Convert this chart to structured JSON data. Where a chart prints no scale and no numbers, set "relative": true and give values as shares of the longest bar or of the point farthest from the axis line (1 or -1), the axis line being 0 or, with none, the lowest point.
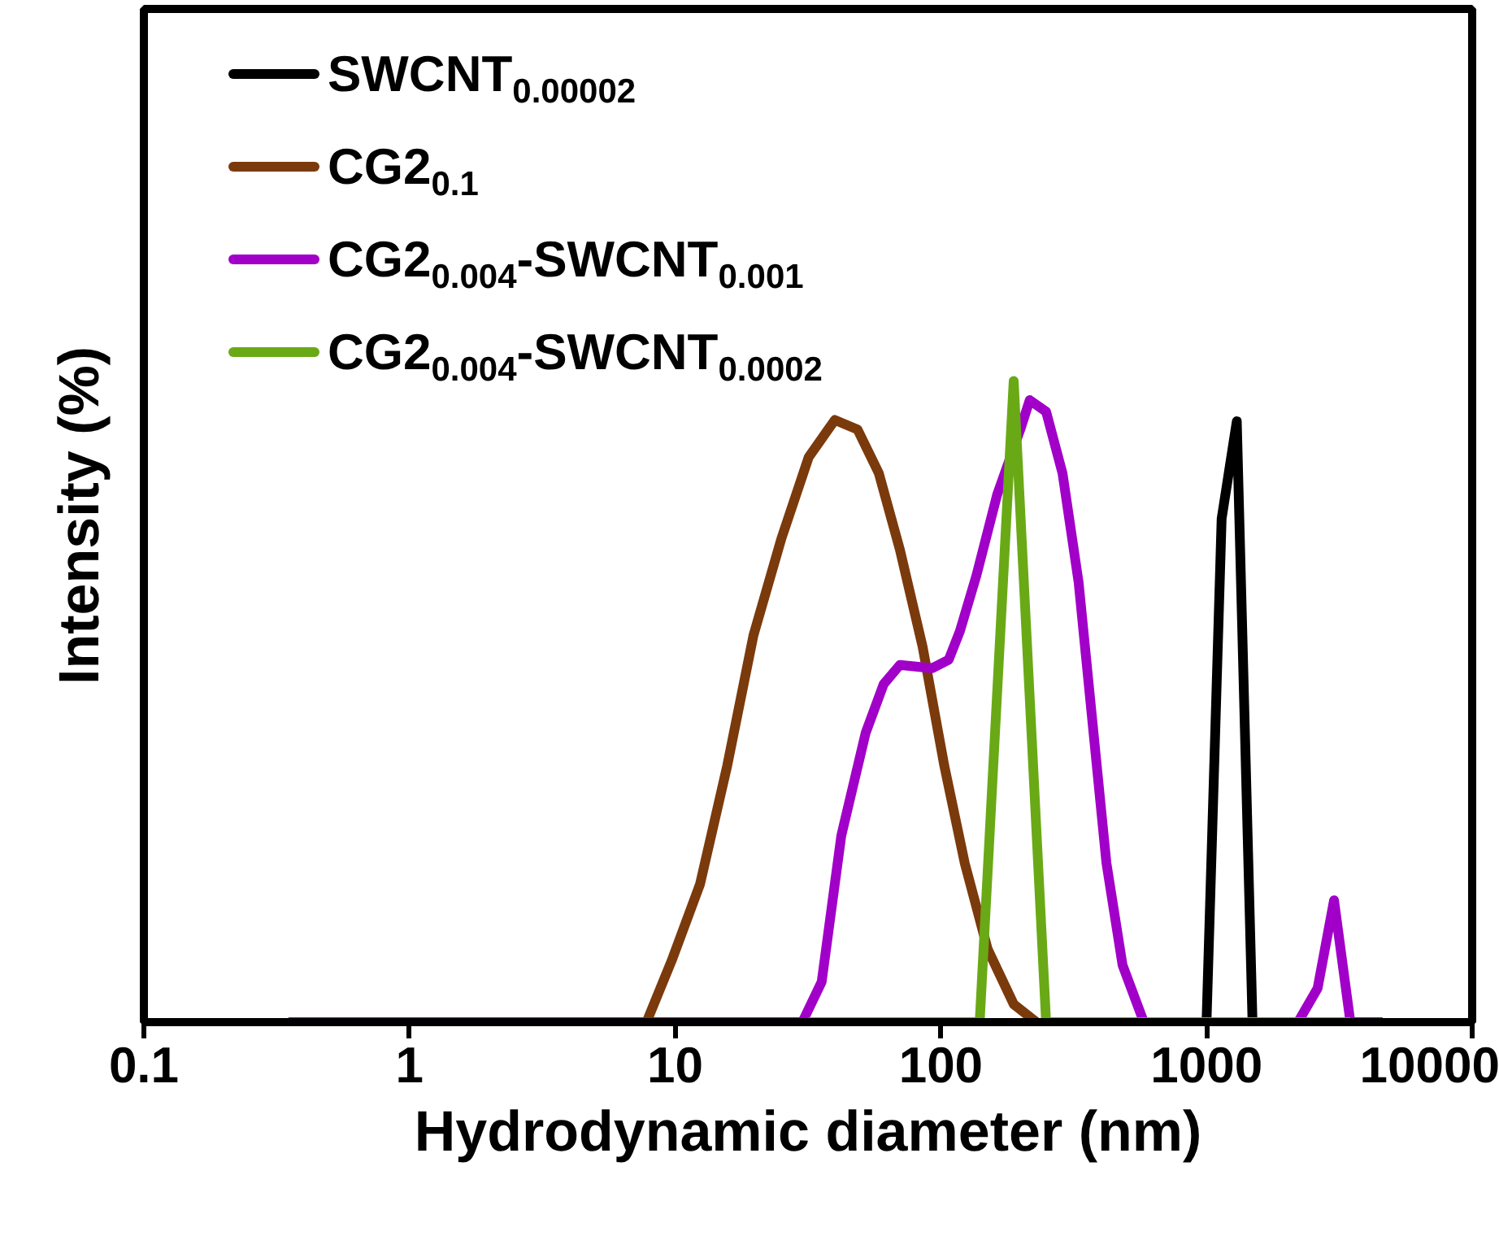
{
  "chart_data": {
    "type": "line",
    "relative": true,
    "xlabel": "Hydrodynamic diameter (nm)",
    "ylabel": "Intensity (%)",
    "log": "x",
    "xlim": [
      0.1,
      10000
    ],
    "xticks": [
      0.1,
      1,
      10,
      100,
      1000,
      10000
    ],
    "tick_labels": "x",
    "grid": false,
    "legend": "top left",
    "marker": "none",
    "line_style": "solid",
    "series": [
      {
        "name": "SWCNT$_{0.00002}$",
        "color": "#000000",
        "x": [
          1000,
          1140,
          1300,
          1490
        ],
        "values": [
          0,
          0.785,
          0.937,
          0
        ]
      },
      {
        "name": "CG2$_{0.1}$",
        "color": "#7b3a0c",
        "x": [
          7.8,
          9.7,
          12.4,
          15.7,
          19.7,
          25.1,
          31.8,
          39.9,
          48.6,
          58.4,
          70.1,
          85.4,
          103,
          123,
          150,
          188,
          229
        ],
        "values": [
          0,
          0.096,
          0.215,
          0.4,
          0.603,
          0.754,
          0.881,
          0.939,
          0.924,
          0.856,
          0.737,
          0.585,
          0.4,
          0.248,
          0.114,
          0.028,
          0
        ]
      },
      {
        "name": "CG2$_{0.004}$-SWCNT$_{0.001}$",
        "color": "#a100c8",
        "x": [
          0.35,
          30.1,
          35.6,
          42.2,
          52.1,
          60.9,
          70.1,
          92.9,
          107,
          118,
          136,
          163,
          199,
          216,
          249,
          287,
          330,
          420,
          483,
          581,
          2210,
          2620,
          3020,
          3480,
          4600
        ],
        "values": [
          0,
          0,
          0.063,
          0.291,
          0.451,
          0.527,
          0.557,
          0.552,
          0.565,
          0.61,
          0.696,
          0.823,
          0.924,
          0.97,
          0.952,
          0.856,
          0.686,
          0.248,
          0.089,
          0,
          0,
          0.053,
          0.19,
          0,
          0
        ]
      },
      {
        "name": "CG2$_{0.004}$-SWCNT$_{0.0002}$",
        "color": "#6aa916",
        "x": [
          31.8,
          140,
          188,
          249,
          3480
        ],
        "values": [
          0,
          0,
          1,
          0,
          0
        ]
      }
    ]
  }
}
